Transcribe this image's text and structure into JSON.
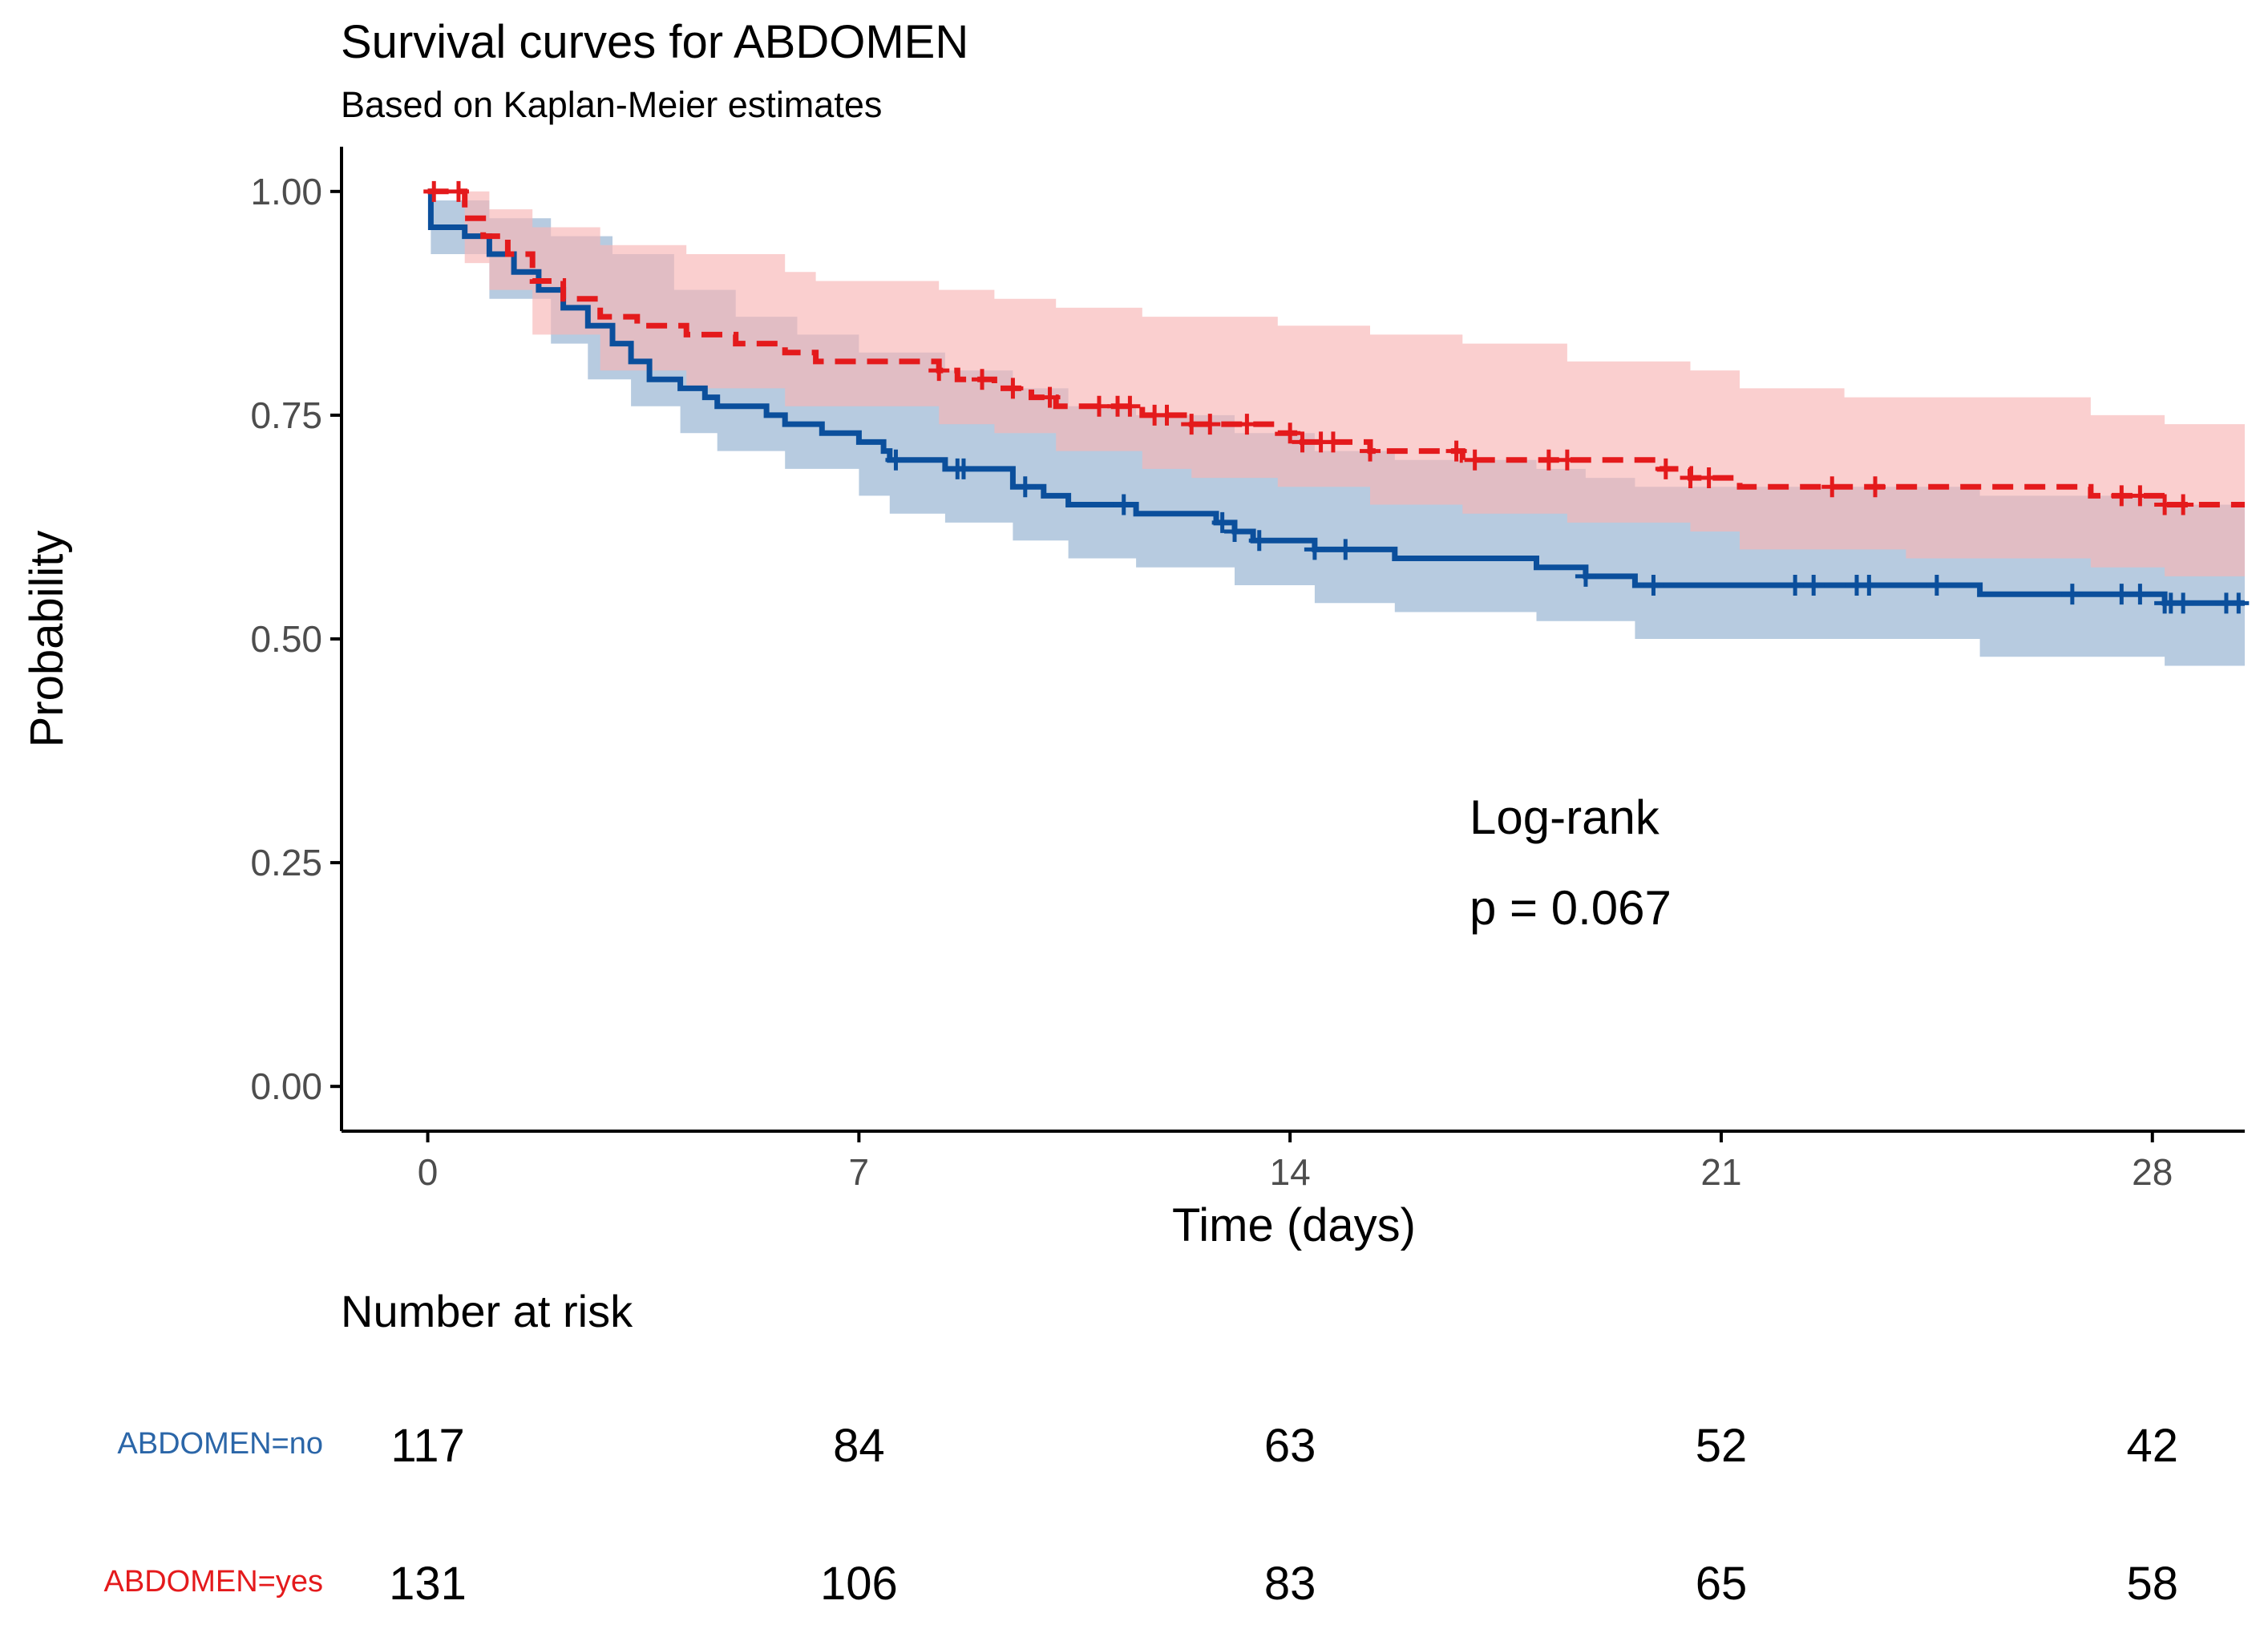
{
  "chart_data": {
    "type": "line",
    "subtype": "kaplan-meier",
    "title": "Survival curves for ABDOMEN",
    "subtitle": "Based on Kaplan-Meier estimates",
    "xlabel": "Time (days)",
    "ylabel": "Probability",
    "xlim": [
      -1.4,
      29.5
    ],
    "ylim": [
      -0.05,
      1.05
    ],
    "xticks": [
      0,
      7,
      14,
      21,
      28
    ],
    "xtick_labels": [
      "0",
      "7",
      "14",
      "21",
      "28"
    ],
    "yticks": [
      0,
      0.25,
      0.5,
      0.75,
      1
    ],
    "ytick_labels": [
      "0.00",
      "0.25",
      "0.50",
      "0.75",
      "1.00"
    ],
    "grid": false,
    "annotation": {
      "line1": "Log-rank",
      "line2": "p = 0.067",
      "x": 17,
      "y": 0.3
    },
    "series": [
      {
        "name": "ABDOMEN=no",
        "color": "#0B4F9C",
        "band_color": "#B3C8DE",
        "dash": false,
        "steps": [
          [
            0,
            1.0
          ],
          [
            0.05,
            0.96
          ],
          [
            0.6,
            0.95
          ],
          [
            1.0,
            0.93
          ],
          [
            1.4,
            0.91
          ],
          [
            1.8,
            0.89
          ],
          [
            2.2,
            0.87
          ],
          [
            2.6,
            0.85
          ],
          [
            3.0,
            0.83
          ],
          [
            3.3,
            0.81
          ],
          [
            3.6,
            0.79
          ],
          [
            4.1,
            0.78
          ],
          [
            4.5,
            0.77
          ],
          [
            4.7,
            0.76
          ],
          [
            5.5,
            0.75
          ],
          [
            5.8,
            0.74
          ],
          [
            6.4,
            0.73
          ],
          [
            7.0,
            0.72
          ],
          [
            7.4,
            0.71
          ],
          [
            7.5,
            0.7
          ],
          [
            8.4,
            0.69
          ],
          [
            9.5,
            0.67
          ],
          [
            10.0,
            0.66
          ],
          [
            10.4,
            0.65
          ],
          [
            11.0,
            0.65
          ],
          [
            11.5,
            0.64
          ],
          [
            12.8,
            0.63
          ],
          [
            13.1,
            0.62
          ],
          [
            13.4,
            0.61
          ],
          [
            14.4,
            0.6
          ],
          [
            15.7,
            0.59
          ],
          [
            18.0,
            0.58
          ],
          [
            18.8,
            0.57
          ],
          [
            19.6,
            0.56
          ],
          [
            25.2,
            0.55
          ],
          [
            28.2,
            0.54
          ],
          [
            29.5,
            0.54
          ]
        ],
        "upper": [
          [
            0,
            1.0
          ],
          [
            0.05,
            0.99
          ],
          [
            1.0,
            0.97
          ],
          [
            2.0,
            0.95
          ],
          [
            3.0,
            0.93
          ],
          [
            4.0,
            0.89
          ],
          [
            5.0,
            0.86
          ],
          [
            6.0,
            0.84
          ],
          [
            7.0,
            0.82
          ],
          [
            8.4,
            0.8
          ],
          [
            9.5,
            0.78
          ],
          [
            10.4,
            0.76
          ],
          [
            11.5,
            0.75
          ],
          [
            13.1,
            0.73
          ],
          [
            14.4,
            0.71
          ],
          [
            15.7,
            0.7
          ],
          [
            18.0,
            0.69
          ],
          [
            18.8,
            0.68
          ],
          [
            19.6,
            0.67
          ],
          [
            25.2,
            0.66
          ],
          [
            28.2,
            0.65
          ],
          [
            29.5,
            0.65
          ]
        ],
        "lower": [
          [
            0,
            1.0
          ],
          [
            0.05,
            0.93
          ],
          [
            1.0,
            0.88
          ],
          [
            2.0,
            0.83
          ],
          [
            2.6,
            0.79
          ],
          [
            3.3,
            0.76
          ],
          [
            4.1,
            0.73
          ],
          [
            4.7,
            0.71
          ],
          [
            5.8,
            0.69
          ],
          [
            7.0,
            0.66
          ],
          [
            7.5,
            0.64
          ],
          [
            8.4,
            0.63
          ],
          [
            9.5,
            0.61
          ],
          [
            10.4,
            0.59
          ],
          [
            11.5,
            0.58
          ],
          [
            13.1,
            0.56
          ],
          [
            14.4,
            0.54
          ],
          [
            15.7,
            0.53
          ],
          [
            18.0,
            0.52
          ],
          [
            19.6,
            0.5
          ],
          [
            25.2,
            0.48
          ],
          [
            28.2,
            0.47
          ],
          [
            29.5,
            0.47
          ]
        ],
        "censor_times": [
          7.6,
          8.6,
          8.7,
          9.7,
          11.3,
          12.9,
          13.1,
          13.5,
          14.4,
          14.9,
          18.8,
          19.9,
          22.2,
          22.5,
          23.2,
          23.4,
          24.5,
          26.7,
          27.5,
          27.8,
          28.2,
          28.3,
          28.5,
          29.2,
          29.4
        ]
      },
      {
        "name": "ABDOMEN=yes",
        "color": "#E41A1C",
        "band_color": "#F8B6B6",
        "dash": true,
        "steps": [
          [
            0,
            1.0
          ],
          [
            0.6,
            0.97
          ],
          [
            0.9,
            0.95
          ],
          [
            1.3,
            0.93
          ],
          [
            1.7,
            0.9
          ],
          [
            2.2,
            0.88
          ],
          [
            2.8,
            0.86
          ],
          [
            3.4,
            0.85
          ],
          [
            4.2,
            0.84
          ],
          [
            5.0,
            0.83
          ],
          [
            5.8,
            0.82
          ],
          [
            6.3,
            0.81
          ],
          [
            8.3,
            0.8
          ],
          [
            8.6,
            0.79
          ],
          [
            9.2,
            0.78
          ],
          [
            9.8,
            0.77
          ],
          [
            10.2,
            0.76
          ],
          [
            11.6,
            0.75
          ],
          [
            12.4,
            0.74
          ],
          [
            13.0,
            0.74
          ],
          [
            13.8,
            0.73
          ],
          [
            14.2,
            0.72
          ],
          [
            15.3,
            0.71
          ],
          [
            16.8,
            0.7
          ],
          [
            18.5,
            0.7
          ],
          [
            20.0,
            0.69
          ],
          [
            20.5,
            0.68
          ],
          [
            21.3,
            0.67
          ],
          [
            27.0,
            0.66
          ],
          [
            28.2,
            0.65
          ],
          [
            29.5,
            0.65
          ]
        ],
        "upper": [
          [
            0,
            1.0
          ],
          [
            0.6,
            1.0
          ],
          [
            1.0,
            0.98
          ],
          [
            1.7,
            0.96
          ],
          [
            2.8,
            0.94
          ],
          [
            4.2,
            0.93
          ],
          [
            5.8,
            0.91
          ],
          [
            6.3,
            0.9
          ],
          [
            8.3,
            0.89
          ],
          [
            9.2,
            0.88
          ],
          [
            10.2,
            0.87
          ],
          [
            11.6,
            0.86
          ],
          [
            13.8,
            0.85
          ],
          [
            15.3,
            0.84
          ],
          [
            16.8,
            0.83
          ],
          [
            18.5,
            0.81
          ],
          [
            20.5,
            0.8
          ],
          [
            21.3,
            0.78
          ],
          [
            23.0,
            0.77
          ],
          [
            27.0,
            0.75
          ],
          [
            28.2,
            0.74
          ],
          [
            29.5,
            0.74
          ]
        ],
        "lower": [
          [
            0,
            1.0
          ],
          [
            0.6,
            0.92
          ],
          [
            1.0,
            0.89
          ],
          [
            1.7,
            0.84
          ],
          [
            2.8,
            0.8
          ],
          [
            4.2,
            0.78
          ],
          [
            5.8,
            0.76
          ],
          [
            8.3,
            0.74
          ],
          [
            9.2,
            0.73
          ],
          [
            10.2,
            0.71
          ],
          [
            11.6,
            0.69
          ],
          [
            12.4,
            0.68
          ],
          [
            13.8,
            0.67
          ],
          [
            15.3,
            0.65
          ],
          [
            16.8,
            0.64
          ],
          [
            18.5,
            0.63
          ],
          [
            20.5,
            0.62
          ],
          [
            21.3,
            0.6
          ],
          [
            24.0,
            0.59
          ],
          [
            27.0,
            0.58
          ],
          [
            28.2,
            0.57
          ],
          [
            29.5,
            0.57
          ]
        ],
        "censor_times": [
          0.1,
          0.5,
          8.3,
          9.0,
          9.5,
          10.1,
          10.9,
          11.2,
          11.4,
          11.8,
          12.0,
          12.4,
          12.7,
          13.3,
          14.0,
          14.2,
          14.5,
          14.7,
          15.3,
          16.7,
          17.0,
          18.2,
          18.5,
          20.1,
          20.5,
          20.8,
          22.8,
          23.5,
          27.5,
          27.8,
          28.2,
          28.5
        ]
      }
    ]
  },
  "risk_table": {
    "title": "Number at risk",
    "times": [
      0,
      7,
      14,
      21,
      28
    ],
    "rows": [
      {
        "label": "ABDOMEN=no",
        "color": "#2B66A8",
        "values": [
          "117",
          "84",
          "63",
          "52",
          "42"
        ]
      },
      {
        "label": "ABDOMEN=yes",
        "color": "#E41A1C",
        "values": [
          "131",
          "106",
          "83",
          "65",
          "58"
        ]
      }
    ]
  }
}
